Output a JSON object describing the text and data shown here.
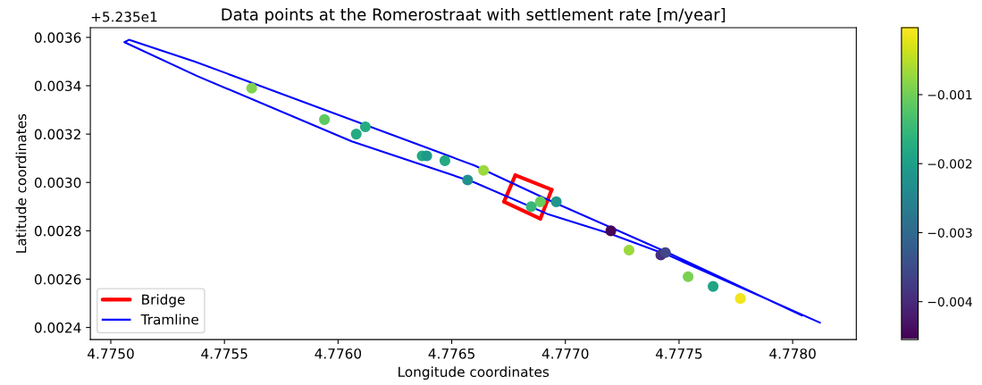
{
  "chart_data": {
    "type": "scatter",
    "title": "Data points at the Romerostraat with settlement rate [m/year]",
    "xlabel": "Longitude coordinates",
    "ylabel": "Latitude coordinates",
    "annotations": [
      "+5.235e1"
    ],
    "xlim": [
      4.77491,
      4.77828
    ],
    "ylim": [
      0.00235,
      0.00364
    ],
    "xticks": [
      {
        "value": 4.775,
        "label": "4.7750"
      },
      {
        "value": 4.7755,
        "label": "4.7755"
      },
      {
        "value": 4.776,
        "label": "4.7760"
      },
      {
        "value": 4.7765,
        "label": "4.7765"
      },
      {
        "value": 4.777,
        "label": "4.7770"
      },
      {
        "value": 4.7775,
        "label": "4.7775"
      },
      {
        "value": 4.778,
        "label": "4.7780"
      }
    ],
    "yticks": [
      0.0024,
      0.0026,
      0.0028,
      {
        "value": 0.003,
        "label": "0.0030"
      },
      0.0032,
      0.0034,
      0.0036
    ],
    "clim": [
      -0.00455,
      -3e-05
    ],
    "cticks": [
      {
        "value": -0.004,
        "label": "−0.004"
      },
      {
        "value": -0.003,
        "label": "−0.003"
      },
      {
        "value": -0.002,
        "label": "−0.002"
      },
      {
        "value": -0.001,
        "label": "−0.001"
      }
    ],
    "grid": false,
    "legend": "bottom left",
    "series": [
      {
        "marker": "circle",
        "x": [
          4.77562,
          4.77594,
          4.77608,
          4.77612,
          4.77637,
          4.77639,
          4.77647,
          4.77657,
          4.77664,
          4.77685,
          4.77689,
          4.77696,
          4.7772,
          4.77728,
          4.77742,
          4.77744,
          4.77754,
          4.77765,
          4.77777
        ],
        "values": [
          0.00339,
          0.00326,
          0.0032,
          0.00323,
          0.00311,
          0.00311,
          0.00309,
          0.00301,
          0.00305,
          0.0029,
          0.00292,
          0.00292,
          0.0028,
          0.00272,
          0.0027,
          0.00271,
          0.00261,
          0.00257,
          0.00252
        ],
        "colors": [
          "#7fd34e",
          "#5ec962",
          "#25ab82",
          "#25ab82",
          "#24aa83",
          "#1f9a8a",
          "#24aa83",
          "#21918c",
          "#9bd93c",
          "#35b779",
          "#67cc5c",
          "#1f968b",
          "#450559",
          "#9bd93c",
          "#472f7d",
          "#404688",
          "#7ad151",
          "#20a486",
          "#f1e51d"
        ]
      },
      {
        "type": "line",
        "name": "Bridge",
        "color": "#ff0000",
        "x": [
          4.77678,
          4.77694,
          4.77689,
          4.77673,
          4.77678
        ],
        "values": [
          0.00303,
          0.00297,
          0.00285,
          0.00292,
          0.00303
        ],
        "line_style": "solid"
      },
      {
        "type": "line",
        "name": "Tramline",
        "color": "#0000ff",
        "x": [
          4.77804,
          4.77745,
          4.77692,
          4.7766,
          4.77537,
          4.77508,
          4.77506,
          4.77538,
          4.77606,
          4.7766,
          4.77692,
          4.77719,
          4.77745,
          4.77812
        ],
        "values": [
          0.00245,
          0.00271,
          0.00293,
          0.00307,
          0.0035,
          0.00359,
          0.00358,
          0.00344,
          0.00317,
          0.003,
          0.00287,
          0.00279,
          0.0027,
          0.00242
        ]
      }
    ]
  }
}
